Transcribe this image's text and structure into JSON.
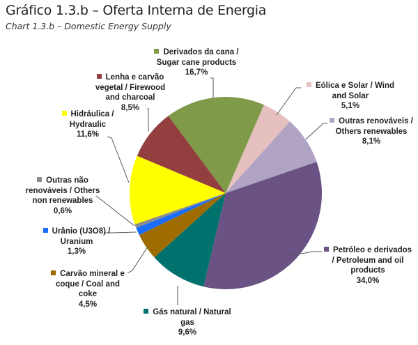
{
  "header": {
    "title": "Gráfico 1.3.b – Oferta Interna de Energia",
    "subtitle": "Chart 1.3.b – Domestic Energy Supply"
  },
  "chart_data": {
    "type": "pie",
    "title": "Gráfico 1.3.b – Oferta Interna de Energia",
    "subtitle": "Chart 1.3.b – Domestic Energy Supply",
    "start_angle_deg": 71,
    "direction": "clockwise",
    "slices": [
      {
        "label_pt": "Petróleo e derivados",
        "label_en": "Petroleum and oil products",
        "line1": "Petróleo e derivados",
        "line2": "/ Petroleum and oil",
        "line3": "products",
        "value": 34.0,
        "value_label": "34,0%",
        "color": "#6A5284"
      },
      {
        "label_pt": "Gás natural",
        "label_en": "Natural gas",
        "line1": "Gás natural / Natural",
        "line2": "gas",
        "line3": "",
        "value": 9.6,
        "value_label": "9,6%",
        "color": "#00716C"
      },
      {
        "label_pt": "Carvão mineral e coque",
        "label_en": "Coal and coke",
        "line1": "Carvão mineral e",
        "line2": "coque / Coal and",
        "line3": "coke",
        "value": 4.5,
        "value_label": "4,5%",
        "color": "#9E6C00"
      },
      {
        "label_pt": "Urânio (U3O8)",
        "label_en": "Uranium",
        "line1": "Urânio (U3O8) /",
        "line2": "Uranium",
        "line3": "",
        "value": 1.3,
        "value_label": "1,3%",
        "color": "#1A6EFF"
      },
      {
        "label_pt": "Outras não renováveis",
        "label_en": "Others non renewables",
        "line1": "Outras não",
        "line2": "renováveis / Others",
        "line3": "non renewables",
        "value": 0.6,
        "value_label": "0,6%",
        "color": "#8C8C8C"
      },
      {
        "label_pt": "Hidráulica",
        "label_en": "Hydraulic",
        "line1": "Hidráulica  /",
        "line2": "Hydraulic",
        "line3": "",
        "value": 11.6,
        "value_label": "11,6%",
        "color": "#FFFF00"
      },
      {
        "label_pt": "Lenha e carvão vegetal",
        "label_en": "Firewood and charcoal",
        "line1": "Lenha e carvão",
        "line2": "vegetal / Firewood",
        "line3": "and charcoal",
        "value": 8.5,
        "value_label": "8,5%",
        "color": "#943F3F"
      },
      {
        "label_pt": "Derivados da cana",
        "label_en": "Sugar cane products",
        "line1": "Derivados da cana /",
        "line2": "Sugar cane products",
        "line3": "",
        "value": 16.7,
        "value_label": "16,7%",
        "color": "#7F9A48"
      },
      {
        "label_pt": "Eólica e Solar",
        "label_en": "Wind and Solar",
        "line1": "Eólica e Solar / Wind",
        "line2": "and Solar",
        "line3": "",
        "value": 5.1,
        "value_label": "5,1%",
        "color": "#E6BFBF"
      },
      {
        "label_pt": "Outras renováveis",
        "label_en": "Others renewables",
        "line1": "Outras renováveis /",
        "line2": "Others renewables",
        "line3": "",
        "value": 8.1,
        "value_label": "8,1%",
        "color": "#B0A3C4"
      }
    ],
    "legend_position": "data labels around pie with leader lines",
    "grid": false
  }
}
